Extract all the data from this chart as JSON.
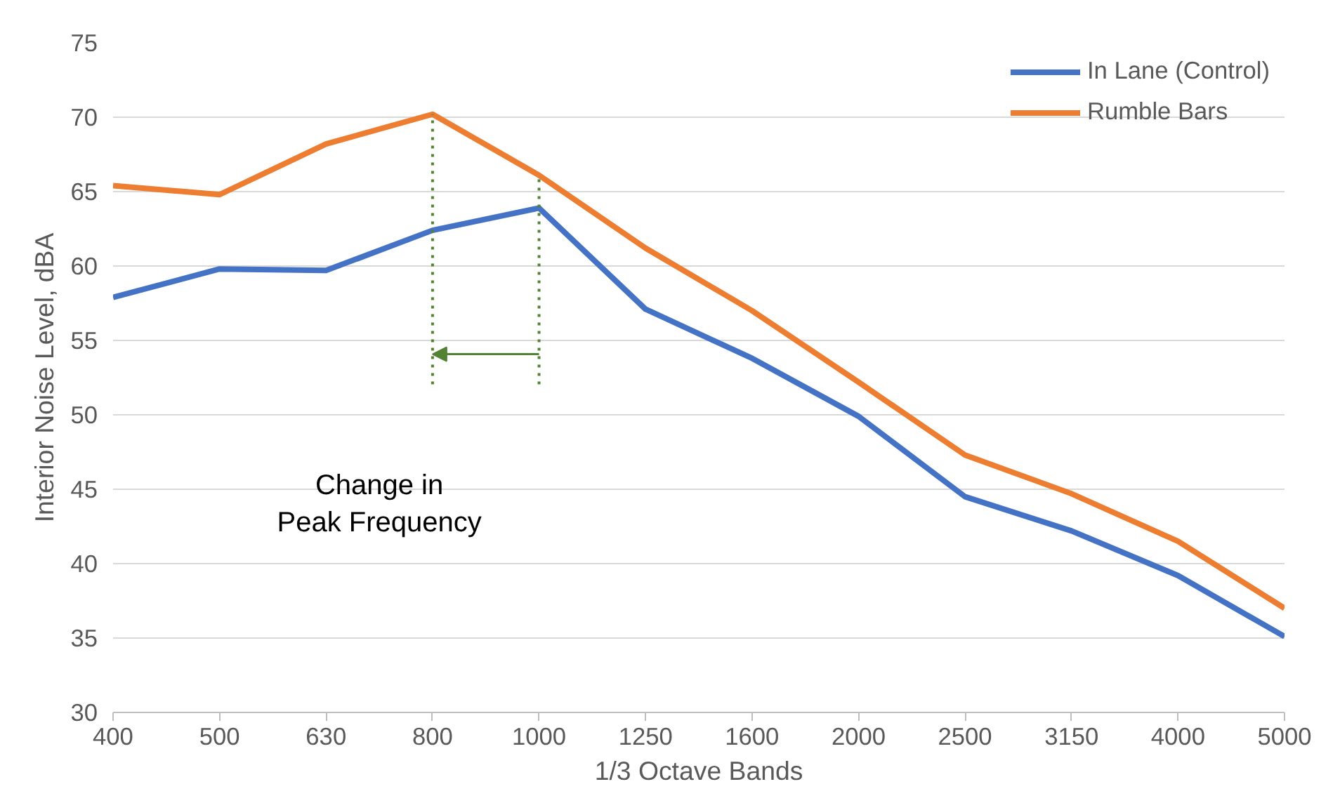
{
  "chart_data": {
    "type": "line",
    "xlabel": "1/3 Octave Bands",
    "ylabel": "Interior Noise Level, dBA",
    "categories": [
      "400",
      "500",
      "630",
      "800",
      "1000",
      "1250",
      "1600",
      "2000",
      "2500",
      "3150",
      "4000",
      "5000"
    ],
    "series": [
      {
        "name": "In Lane (Control)",
        "color": "#4472c4",
        "values": [
          57.9,
          59.8,
          59.7,
          62.4,
          63.9,
          57.1,
          53.8,
          49.9,
          44.5,
          42.2,
          39.2,
          35.1
        ]
      },
      {
        "name": "Rumble Bars",
        "color": "#ed7d31",
        "values": [
          65.4,
          64.8,
          68.2,
          70.2,
          66.1,
          61.2,
          57.0,
          52.2,
          47.3,
          44.7,
          41.5,
          37.0
        ]
      }
    ],
    "ylim": [
      30,
      75
    ],
    "yticks": [
      30,
      35,
      40,
      45,
      50,
      55,
      60,
      65,
      70,
      75
    ],
    "ref_lines": [
      {
        "axis": "x",
        "value": "800",
        "color": "#548235",
        "line_style": "dotted"
      },
      {
        "axis": "x",
        "value": "1000",
        "color": "#548235",
        "line_style": "dotted"
      }
    ],
    "grid": "y",
    "legend": "top right",
    "marker": "none",
    "line_style": "solid",
    "annotations": [
      "Change in\nPeak Frequency"
    ]
  }
}
